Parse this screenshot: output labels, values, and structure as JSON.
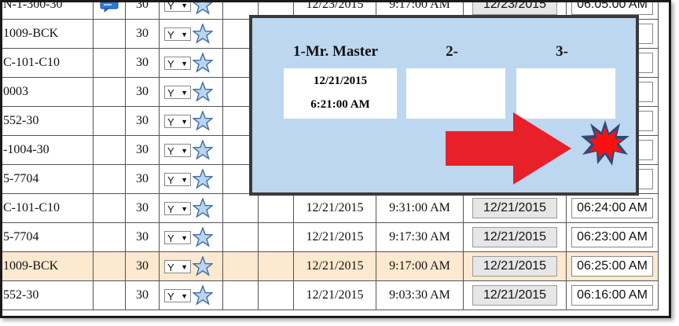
{
  "rows": [
    {
      "id": "N-1-300-30",
      "num": "30",
      "flag": "Y",
      "date": "12/23/2015",
      "time": "9:17:00 AM",
      "date2": "12/23/2015",
      "time2": "06:05:00 AM",
      "icon": "chat-bubble-icon",
      "hl": false
    },
    {
      "id": "1009-BCK",
      "num": "30",
      "flag": "Y",
      "date": "",
      "time": "",
      "date2": "",
      "time2": "AM",
      "icon": "",
      "hl": false
    },
    {
      "id": "C-101-C10",
      "num": "30",
      "flag": "Y",
      "date": "",
      "time": "",
      "date2": "",
      "time2": "AM",
      "icon": "",
      "hl": false
    },
    {
      "id": "0003",
      "num": "30",
      "flag": "Y",
      "date": "",
      "time": "",
      "date2": "",
      "time2": "AM",
      "icon": "",
      "hl": false
    },
    {
      "id": "552-30",
      "num": "30",
      "flag": "Y",
      "date": "",
      "time": "",
      "date2": "",
      "time2": "AM",
      "icon": "",
      "hl": false
    },
    {
      "id": "-1004-30",
      "num": "30",
      "flag": "Y",
      "date": "",
      "time": "",
      "date2": "",
      "time2": "AM",
      "icon": "",
      "hl": false
    },
    {
      "id": "5-7704",
      "num": "30",
      "flag": "Y",
      "date": "",
      "time": "",
      "date2": "",
      "time2": "AM",
      "icon": "",
      "hl": false
    },
    {
      "id": "C-101-C10",
      "num": "30",
      "flag": "Y",
      "date": "12/21/2015",
      "time": "9:31:00 AM",
      "date2": "12/21/2015",
      "time2": "06:24:00 AM",
      "icon": "",
      "hl": false
    },
    {
      "id": "5-7704",
      "num": "30",
      "flag": "Y",
      "date": "12/21/2015",
      "time": "9:17:30 AM",
      "date2": "12/21/2015",
      "time2": "06:23:00 AM",
      "icon": "",
      "hl": false
    },
    {
      "id": "1009-BCK",
      "num": "30",
      "flag": "Y",
      "date": "12/21/2015",
      "time": "9:17:00 AM",
      "date2": "12/21/2015",
      "time2": "06:25:00 AM",
      "icon": "",
      "hl": true
    },
    {
      "id": "552-30",
      "num": "30",
      "flag": "Y",
      "date": "12/21/2015",
      "time": "9:03:30 AM",
      "date2": "12/21/2015",
      "time2": "06:16:00 AM",
      "icon": "",
      "hl": false
    }
  ],
  "overlay": {
    "heading1": "1-Mr. Master",
    "heading2": "2-",
    "heading3": "3-",
    "box1_line1": "12/21/2015",
    "box1_line2": "6:21:00 AM",
    "box2_line1": "",
    "box3_line1": ""
  },
  "colors": {
    "highlight_row": "#fde9cf",
    "overlay_bg": "#bed7f0",
    "arrow": "#e8202a",
    "star_fill": "#bcd4ee",
    "burst": "#ff1010"
  },
  "icons": {
    "star": "star-icon",
    "arrow": "right-arrow-icon",
    "burst": "explosion-burst-icon",
    "dropdown": "chevron-down-icon"
  }
}
